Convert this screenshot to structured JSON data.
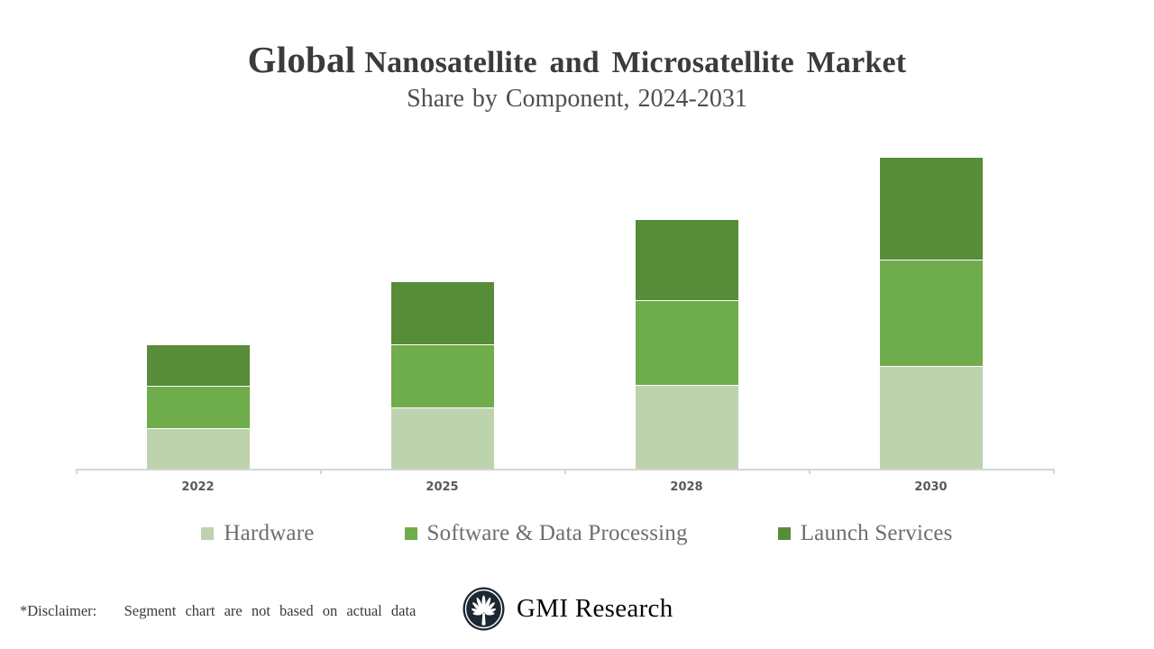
{
  "header": {
    "title_emphasis": "Global",
    "title_rest": "Nanosatellite and Microsatellite Market",
    "subtitle": "Share by Component, 2024-2031"
  },
  "chart_data": {
    "type": "bar",
    "stacked": true,
    "title": "Global Nanosatellite and Microsatellite Market",
    "subtitle": "Share by Component, 2024-2031",
    "categories": [
      "2022",
      "2025",
      "2028",
      "2030"
    ],
    "series": [
      {
        "name": "Hardware",
        "color": "#bdd3ad",
        "values": [
          45,
          68,
          93,
          114
        ]
      },
      {
        "name": "Software & Data Processing",
        "color": "#6fac4b",
        "values": [
          47,
          70,
          94,
          118
        ]
      },
      {
        "name": "Launch Services",
        "color": "#578c39",
        "values": [
          45,
          69,
          89,
          113
        ]
      }
    ],
    "totals": [
      137,
      207,
      276,
      345
    ],
    "value_note": "illustrative relative units; slide states segments are not based on actual data",
    "ylim": [
      0,
      360
    ],
    "grid": false,
    "y_axis_shown": false,
    "legend_position": "bottom",
    "axis_color": "#d5d5d5",
    "category_label_color": "#595959"
  },
  "footer": {
    "disclaimer": "*Disclaimer:   Segment chart are not based on actual data",
    "brand": "GMI Research"
  },
  "colors": {
    "title": "#3b3b3b",
    "subtitle": "#4f4f4f",
    "legend_text": "#6e6e6e",
    "logo_fill": "#1d2733"
  }
}
